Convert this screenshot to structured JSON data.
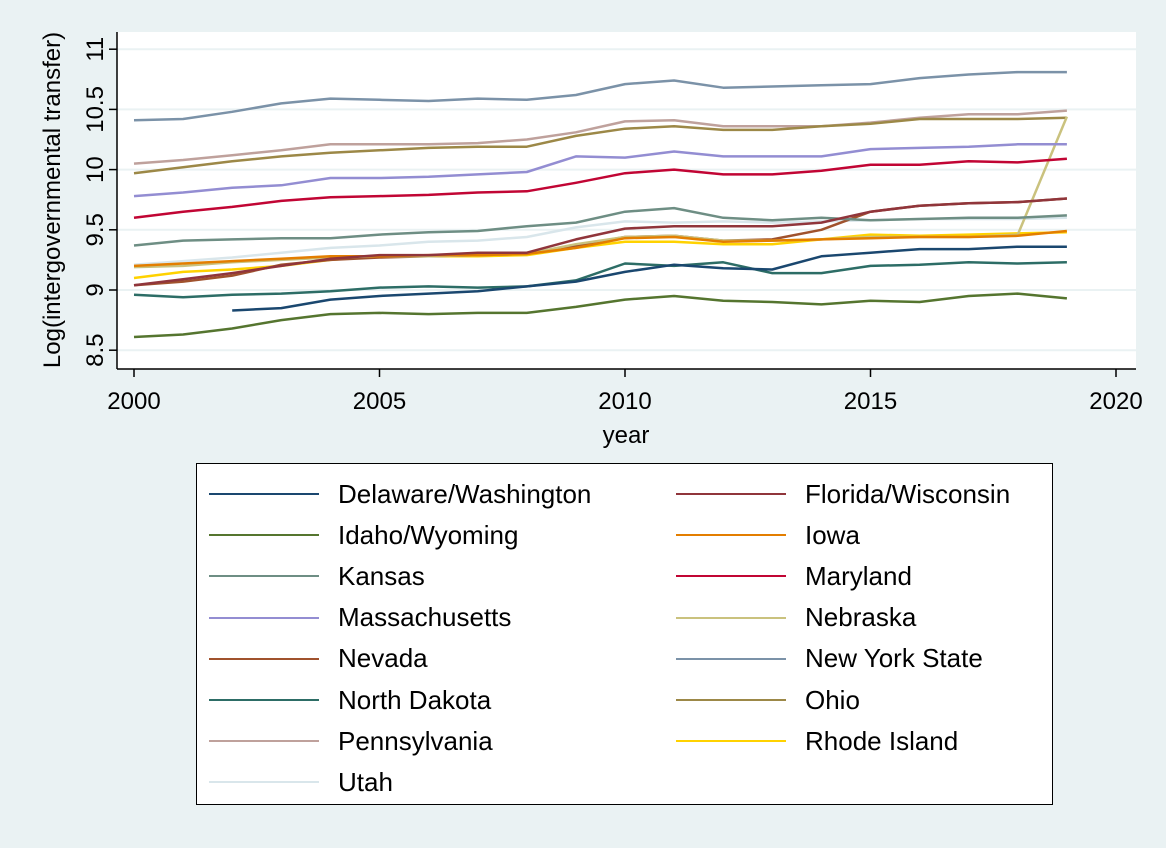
{
  "chart_data": {
    "type": "line",
    "title": "",
    "xlabel": "year",
    "ylabel": "Log(intergovernmental transfer)",
    "xlim": [
      2000,
      2020
    ],
    "ylim": [
      8.45,
      11.2
    ],
    "x_ticks": [
      2000,
      2005,
      2010,
      2015,
      2020
    ],
    "y_ticks": [
      8.5,
      9,
      9.5,
      10,
      10.5,
      11
    ],
    "y_tick_labels": [
      "8.5",
      "9",
      "9.5",
      "10",
      "10.5",
      "11"
    ],
    "grid": true,
    "legend_position": "bottom",
    "x": [
      2000,
      2001,
      2002,
      2003,
      2004,
      2005,
      2006,
      2007,
      2008,
      2009,
      2010,
      2011,
      2012,
      2013,
      2014,
      2015,
      2016,
      2017,
      2018,
      2019
    ],
    "series": [
      {
        "name": "Delaware/Washington",
        "color": "#1a476f",
        "values": [
          null,
          null,
          8.83,
          8.85,
          8.92,
          8.95,
          8.97,
          8.99,
          9.03,
          9.07,
          9.15,
          9.21,
          9.18,
          9.17,
          9.28,
          9.31,
          9.34,
          9.34,
          9.36,
          9.36
        ]
      },
      {
        "name": "Florida/Wisconsin",
        "color": "#90353b",
        "values": [
          9.04,
          9.09,
          9.14,
          9.2,
          9.26,
          9.29,
          9.29,
          9.31,
          9.31,
          9.42,
          9.51,
          9.53,
          9.53,
          9.53,
          9.56,
          9.65,
          9.7,
          9.72,
          9.73,
          9.76
        ]
      },
      {
        "name": "Idaho/Wyoming",
        "color": "#55752f",
        "values": [
          8.61,
          8.63,
          8.68,
          8.75,
          8.8,
          8.81,
          8.8,
          8.81,
          8.81,
          8.86,
          8.92,
          8.95,
          8.91,
          8.9,
          8.88,
          8.91,
          8.9,
          8.95,
          8.97,
          8.93
        ]
      },
      {
        "name": "Iowa",
        "color": "#e37e00",
        "values": [
          9.2,
          9.22,
          9.24,
          9.26,
          9.28,
          9.28,
          9.29,
          9.29,
          9.3,
          9.35,
          9.43,
          9.44,
          9.4,
          9.41,
          9.42,
          9.43,
          9.44,
          9.44,
          9.45,
          9.49
        ]
      },
      {
        "name": "Kansas",
        "color": "#6e8e84",
        "values": [
          9.37,
          9.41,
          9.42,
          9.43,
          9.43,
          9.46,
          9.48,
          9.49,
          9.53,
          9.56,
          9.65,
          9.68,
          9.6,
          9.58,
          9.6,
          9.58,
          9.59,
          9.6,
          9.6,
          9.62
        ]
      },
      {
        "name": "Maryland",
        "color": "#c10534",
        "values": [
          9.6,
          9.65,
          9.69,
          9.74,
          9.77,
          9.78,
          9.79,
          9.81,
          9.82,
          9.89,
          9.97,
          10.0,
          9.96,
          9.96,
          9.99,
          10.04,
          10.04,
          10.07,
          10.06,
          10.09
        ]
      },
      {
        "name": "Massachusetts",
        "color": "#938dd2",
        "values": [
          9.78,
          9.81,
          9.85,
          9.87,
          9.93,
          9.93,
          9.94,
          9.96,
          9.98,
          10.11,
          10.1,
          10.15,
          10.11,
          10.11,
          10.11,
          10.17,
          10.18,
          10.19,
          10.21,
          10.21
        ]
      },
      {
        "name": "Nebraska",
        "color": "#cac27e",
        "values": [
          9.19,
          9.2,
          9.23,
          9.25,
          9.27,
          9.28,
          9.28,
          9.29,
          9.3,
          9.38,
          9.44,
          9.45,
          9.41,
          9.41,
          9.42,
          9.44,
          9.44,
          9.44,
          9.46,
          10.44
        ]
      },
      {
        "name": "Nevada",
        "color": "#a0522d",
        "values": [
          9.04,
          9.07,
          9.12,
          9.21,
          9.25,
          9.27,
          9.28,
          9.29,
          9.3,
          9.37,
          9.44,
          9.45,
          9.41,
          9.42,
          9.5,
          9.65,
          9.7,
          9.72,
          9.73,
          9.76
        ]
      },
      {
        "name": "New York State",
        "color": "#7b92a8",
        "values": [
          10.41,
          10.42,
          10.48,
          10.55,
          10.59,
          10.58,
          10.57,
          10.59,
          10.58,
          10.62,
          10.71,
          10.74,
          10.68,
          10.69,
          10.7,
          10.71,
          10.76,
          10.79,
          10.81,
          10.81
        ]
      },
      {
        "name": "North Dakota",
        "color": "#2d6d66",
        "values": [
          8.96,
          8.94,
          8.96,
          8.97,
          8.99,
          9.02,
          9.03,
          9.02,
          9.03,
          9.08,
          9.22,
          9.2,
          9.23,
          9.14,
          9.14,
          9.2,
          9.21,
          9.23,
          9.22,
          9.23
        ]
      },
      {
        "name": "Ohio",
        "color": "#9c8847",
        "values": [
          9.97,
          10.02,
          10.07,
          10.11,
          10.14,
          10.16,
          10.18,
          10.19,
          10.19,
          10.28,
          10.34,
          10.36,
          10.33,
          10.33,
          10.36,
          10.38,
          10.42,
          10.42,
          10.42,
          10.43
        ]
      },
      {
        "name": "Pennsylvania",
        "color": "#bfa19c",
        "values": [
          10.05,
          10.08,
          10.12,
          10.16,
          10.21,
          10.21,
          10.21,
          10.22,
          10.25,
          10.31,
          10.4,
          10.41,
          10.36,
          10.36,
          10.36,
          10.39,
          10.43,
          10.46,
          10.46,
          10.49
        ]
      },
      {
        "name": "Rhode Island",
        "color": "#ffd200",
        "values": [
          9.1,
          9.15,
          9.17,
          9.2,
          9.25,
          9.28,
          9.28,
          9.28,
          9.29,
          9.35,
          9.4,
          9.4,
          9.38,
          9.38,
          9.42,
          9.46,
          9.45,
          9.46,
          9.47,
          9.48
        ]
      },
      {
        "name": "Utah",
        "color": "#d9e6eb",
        "values": [
          9.21,
          9.24,
          9.27,
          9.31,
          9.35,
          9.37,
          9.4,
          9.41,
          9.44,
          9.52,
          9.57,
          9.56,
          9.57,
          9.56,
          9.57,
          9.58,
          9.59,
          9.59,
          9.59,
          9.6
        ]
      }
    ],
    "legend_order": [
      "Delaware/Washington",
      "Florida/Wisconsin",
      "Idaho/Wyoming",
      "Iowa",
      "Kansas",
      "Maryland",
      "Massachusetts",
      "Nebraska",
      "Nevada",
      "New York State",
      "North Dakota",
      "Ohio",
      "Pennsylvania",
      "Rhode Island",
      "Utah"
    ]
  }
}
